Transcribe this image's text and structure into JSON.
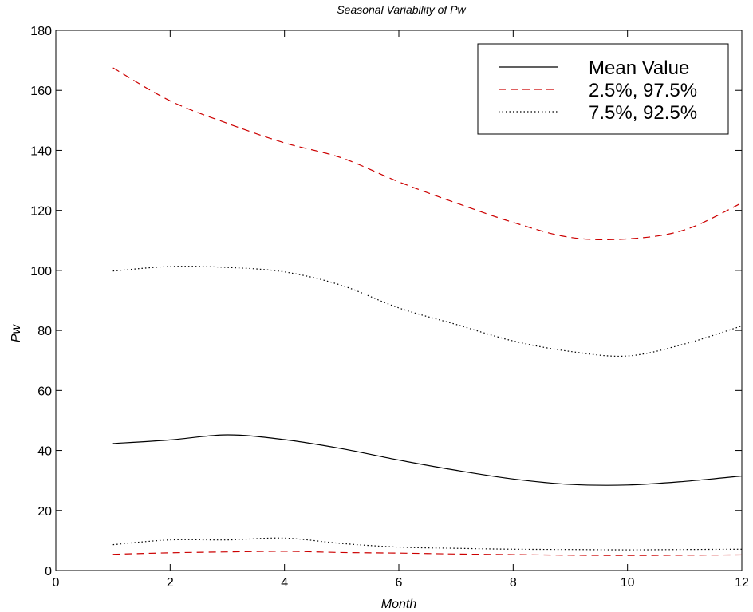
{
  "chart_data": {
    "type": "line",
    "title": "Seasonal Variability of Pw",
    "xlabel": "Month",
    "ylabel": "Pw",
    "xlim": [
      0,
      12
    ],
    "ylim": [
      0,
      180
    ],
    "xticks": [
      0,
      2,
      4,
      6,
      8,
      10,
      12
    ],
    "yticks": [
      0,
      20,
      40,
      60,
      80,
      100,
      120,
      140,
      160,
      180
    ],
    "grid": false,
    "legend_position": "top-right",
    "x": [
      1,
      2,
      3,
      4,
      5,
      6,
      7,
      8,
      9,
      10,
      11,
      12
    ],
    "series": [
      {
        "name": "Mean Value",
        "color": "#000000",
        "style": "solid",
        "group": "mean",
        "values": [
          42.3,
          43.5,
          45.2,
          43.6,
          40.6,
          36.8,
          33.4,
          30.5,
          28.7,
          28.5,
          29.7,
          31.5
        ]
      },
      {
        "name": "2.5%, 97.5%",
        "color": "#cc0000",
        "style": "dashed",
        "group": "q2_5",
        "values": [
          167.5,
          156.5,
          149.0,
          142.5,
          137.5,
          129.5,
          122.5,
          116.0,
          111.0,
          110.5,
          113.5,
          122.5
        ]
      },
      {
        "name": "",
        "color": "#cc0000",
        "style": "dashed",
        "group": "q2_5",
        "values": [
          5.4,
          5.9,
          6.2,
          6.4,
          6.0,
          5.8,
          5.5,
          5.3,
          5.1,
          5.0,
          5.1,
          5.2
        ]
      },
      {
        "name": "7.5%, 92.5%",
        "color": "#000000",
        "style": "dotted",
        "group": "q7_5",
        "values": [
          99.8,
          101.3,
          101.0,
          99.5,
          95.0,
          87.5,
          82.0,
          76.5,
          73.0,
          71.5,
          75.5,
          81.5
        ]
      },
      {
        "name": "",
        "color": "#000000",
        "style": "dotted",
        "group": "q7_5",
        "values": [
          8.6,
          10.2,
          10.2,
          10.8,
          9.0,
          7.8,
          7.4,
          7.1,
          7.0,
          6.9,
          7.0,
          7.1
        ]
      }
    ],
    "legend": [
      "Mean Value",
      "2.5%, 97.5%",
      "7.5%, 92.5%"
    ]
  }
}
